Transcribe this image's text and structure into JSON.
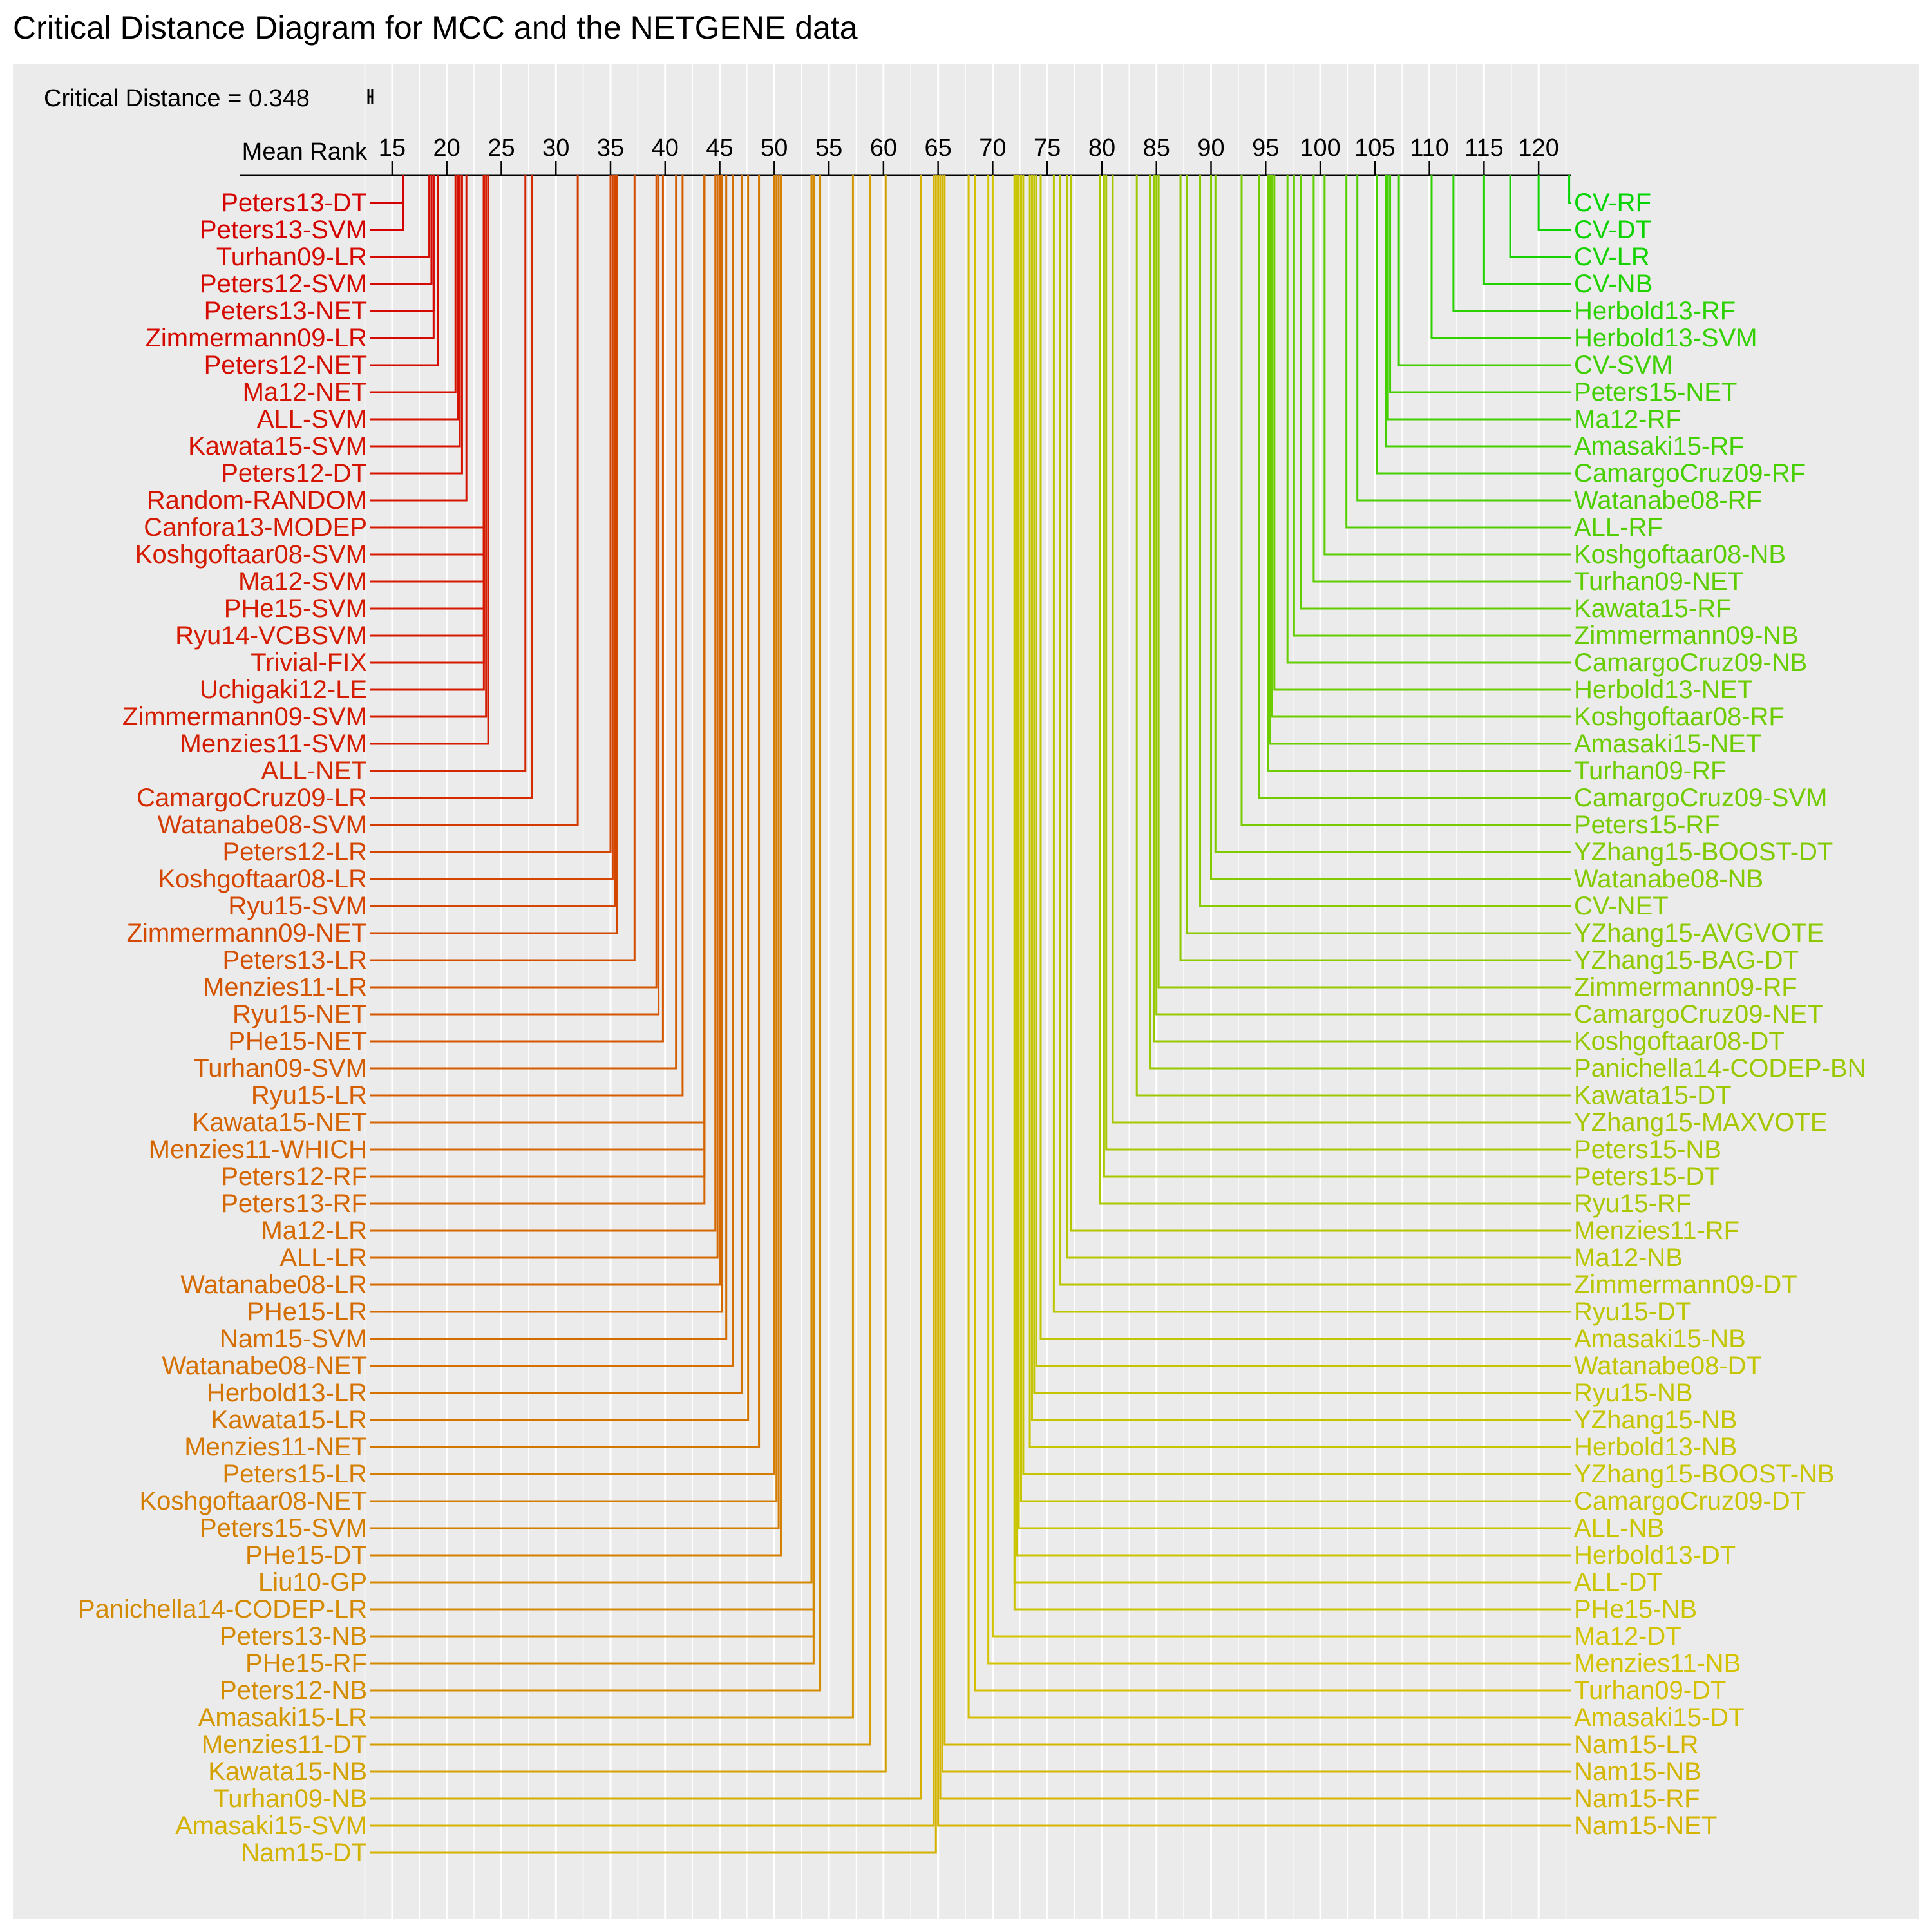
{
  "chart_data": {
    "type": "critical-distance-diagram",
    "title": "Critical Distance Diagram for MCC and the NETGENE data",
    "critical_distance_label": "Critical Distance = 0.348",
    "critical_distance": 0.348,
    "axis_label": "Mean Rank",
    "axis_range": [
      13,
      123
    ],
    "ticks": [
      15,
      20,
      25,
      30,
      35,
      40,
      45,
      50,
      55,
      60,
      65,
      70,
      75,
      80,
      85,
      90,
      95,
      100,
      105,
      110,
      115,
      120
    ],
    "grid": true,
    "colors": {
      "low": "#d40000",
      "mid": "#d4c400",
      "high": "#00d400",
      "background": "#ebebeb",
      "grid": "#ffffff"
    },
    "left_items": [
      {
        "name": "Peters13-DT",
        "rank": 16.0
      },
      {
        "name": "Peters13-SVM",
        "rank": 16.0
      },
      {
        "name": "Turhan09-LR",
        "rank": 18.4
      },
      {
        "name": "Peters12-SVM",
        "rank": 18.6
      },
      {
        "name": "Peters13-NET",
        "rank": 18.8
      },
      {
        "name": "Zimmermann09-LR",
        "rank": 18.8
      },
      {
        "name": "Peters12-NET",
        "rank": 19.2
      },
      {
        "name": "Ma12-NET",
        "rank": 20.8
      },
      {
        "name": "ALL-SVM",
        "rank": 21.0
      },
      {
        "name": "Kawata15-SVM",
        "rank": 21.2
      },
      {
        "name": "Peters12-DT",
        "rank": 21.4
      },
      {
        "name": "Random-RANDOM",
        "rank": 21.8
      },
      {
        "name": "Canfora13-MODEP",
        "rank": 23.4
      },
      {
        "name": "Koshgoftaar08-SVM",
        "rank": 23.4
      },
      {
        "name": "Ma12-SVM",
        "rank": 23.4
      },
      {
        "name": "PHe15-SVM",
        "rank": 23.4
      },
      {
        "name": "Ryu14-VCBSVM",
        "rank": 23.4
      },
      {
        "name": "Trivial-FIX",
        "rank": 23.4
      },
      {
        "name": "Uchigaki12-LE",
        "rank": 23.4
      },
      {
        "name": "Zimmermann09-SVM",
        "rank": 23.6
      },
      {
        "name": "Menzies11-SVM",
        "rank": 23.8
      },
      {
        "name": "ALL-NET",
        "rank": 27.2
      },
      {
        "name": "CamargoCruz09-LR",
        "rank": 27.8
      },
      {
        "name": "Watanabe08-SVM",
        "rank": 32.0
      },
      {
        "name": "Peters12-LR",
        "rank": 35.0
      },
      {
        "name": "Koshgoftaar08-LR",
        "rank": 35.2
      },
      {
        "name": "Ryu15-SVM",
        "rank": 35.4
      },
      {
        "name": "Zimmermann09-NET",
        "rank": 35.6
      },
      {
        "name": "Peters13-LR",
        "rank": 37.2
      },
      {
        "name": "Menzies11-LR",
        "rank": 39.2
      },
      {
        "name": "Ryu15-NET",
        "rank": 39.4
      },
      {
        "name": "PHe15-NET",
        "rank": 39.8
      },
      {
        "name": "Turhan09-SVM",
        "rank": 41.0
      },
      {
        "name": "Ryu15-LR",
        "rank": 41.6
      },
      {
        "name": "Kawata15-NET",
        "rank": 43.6
      },
      {
        "name": "Menzies11-WHICH",
        "rank": 43.6
      },
      {
        "name": "Peters12-RF",
        "rank": 43.6
      },
      {
        "name": "Peters13-RF",
        "rank": 43.6
      },
      {
        "name": "Ma12-LR",
        "rank": 44.6
      },
      {
        "name": "ALL-LR",
        "rank": 44.8
      },
      {
        "name": "Watanabe08-LR",
        "rank": 45.0
      },
      {
        "name": "PHe15-LR",
        "rank": 45.2
      },
      {
        "name": "Nam15-SVM",
        "rank": 45.6
      },
      {
        "name": "Watanabe08-NET",
        "rank": 46.2
      },
      {
        "name": "Herbold13-LR",
        "rank": 47.0
      },
      {
        "name": "Kawata15-LR",
        "rank": 47.6
      },
      {
        "name": "Menzies11-NET",
        "rank": 48.6
      },
      {
        "name": "Peters15-LR",
        "rank": 50.0
      },
      {
        "name": "Koshgoftaar08-NET",
        "rank": 50.2
      },
      {
        "name": "Peters15-SVM",
        "rank": 50.4
      },
      {
        "name": "PHe15-DT",
        "rank": 50.6
      },
      {
        "name": "Liu10-GP",
        "rank": 53.4
      },
      {
        "name": "Panichella14-CODEP-LR",
        "rank": 53.6
      },
      {
        "name": "Peters13-NB",
        "rank": 53.6
      },
      {
        "name": "PHe15-RF",
        "rank": 53.6
      },
      {
        "name": "Peters12-NB",
        "rank": 54.2
      },
      {
        "name": "Amasaki15-LR",
        "rank": 57.2
      },
      {
        "name": "Menzies11-DT",
        "rank": 58.8
      },
      {
        "name": "Kawata15-NB",
        "rank": 60.2
      },
      {
        "name": "Turhan09-NB",
        "rank": 63.4
      },
      {
        "name": "Amasaki15-SVM",
        "rank": 64.6
      },
      {
        "name": "Nam15-DT",
        "rank": 64.8
      }
    ],
    "right_items": [
      {
        "name": "CV-RF",
        "rank": 122.8
      },
      {
        "name": "CV-DT",
        "rank": 120.0
      },
      {
        "name": "CV-LR",
        "rank": 117.4
      },
      {
        "name": "CV-NB",
        "rank": 115.0
      },
      {
        "name": "Herbold13-RF",
        "rank": 112.2
      },
      {
        "name": "Herbold13-SVM",
        "rank": 110.2
      },
      {
        "name": "CV-SVM",
        "rank": 107.2
      },
      {
        "name": "Peters15-NET",
        "rank": 106.4
      },
      {
        "name": "Ma12-RF",
        "rank": 106.2
      },
      {
        "name": "Amasaki15-RF",
        "rank": 106.0
      },
      {
        "name": "CamargoCruz09-RF",
        "rank": 105.2
      },
      {
        "name": "Watanabe08-RF",
        "rank": 103.4
      },
      {
        "name": "ALL-RF",
        "rank": 102.4
      },
      {
        "name": "Koshgoftaar08-NB",
        "rank": 100.4
      },
      {
        "name": "Turhan09-NET",
        "rank": 99.4
      },
      {
        "name": "Kawata15-RF",
        "rank": 98.2
      },
      {
        "name": "Zimmermann09-NB",
        "rank": 97.6
      },
      {
        "name": "CamargoCruz09-NB",
        "rank": 97.0
      },
      {
        "name": "Herbold13-NET",
        "rank": 95.8
      },
      {
        "name": "Koshgoftaar08-RF",
        "rank": 95.6
      },
      {
        "name": "Amasaki15-NET",
        "rank": 95.4
      },
      {
        "name": "Turhan09-RF",
        "rank": 95.2
      },
      {
        "name": "CamargoCruz09-SVM",
        "rank": 94.4
      },
      {
        "name": "Peters15-RF",
        "rank": 92.8
      },
      {
        "name": "YZhang15-BOOST-DT",
        "rank": 90.4
      },
      {
        "name": "Watanabe08-NB",
        "rank": 90.0
      },
      {
        "name": "CV-NET",
        "rank": 89.0
      },
      {
        "name": "YZhang15-AVGVOTE",
        "rank": 87.8
      },
      {
        "name": "YZhang15-BAG-DT",
        "rank": 87.2
      },
      {
        "name": "Zimmermann09-RF",
        "rank": 85.2
      },
      {
        "name": "CamargoCruz09-NET",
        "rank": 85.0
      },
      {
        "name": "Koshgoftaar08-DT",
        "rank": 84.8
      },
      {
        "name": "Panichella14-CODEP-BN",
        "rank": 84.4
      },
      {
        "name": "Kawata15-DT",
        "rank": 83.2
      },
      {
        "name": "YZhang15-MAXVOTE",
        "rank": 81.0
      },
      {
        "name": "Peters15-NB",
        "rank": 80.4
      },
      {
        "name": "Peters15-DT",
        "rank": 80.2
      },
      {
        "name": "Ryu15-RF",
        "rank": 79.8
      },
      {
        "name": "Menzies11-RF",
        "rank": 77.2
      },
      {
        "name": "Ma12-NB",
        "rank": 76.8
      },
      {
        "name": "Zimmermann09-DT",
        "rank": 76.2
      },
      {
        "name": "Ryu15-DT",
        "rank": 75.6
      },
      {
        "name": "Amasaki15-NB",
        "rank": 74.4
      },
      {
        "name": "Watanabe08-DT",
        "rank": 74.0
      },
      {
        "name": "Ryu15-NB",
        "rank": 73.8
      },
      {
        "name": "YZhang15-NB",
        "rank": 73.6
      },
      {
        "name": "Herbold13-NB",
        "rank": 73.4
      },
      {
        "name": "YZhang15-BOOST-NB",
        "rank": 72.8
      },
      {
        "name": "CamargoCruz09-DT",
        "rank": 72.6
      },
      {
        "name": "ALL-NB",
        "rank": 72.4
      },
      {
        "name": "Herbold13-DT",
        "rank": 72.2
      },
      {
        "name": "ALL-DT",
        "rank": 72.0
      },
      {
        "name": "PHe15-NB",
        "rank": 72.0
      },
      {
        "name": "Ma12-DT",
        "rank": 70.0
      },
      {
        "name": "Menzies11-NB",
        "rank": 69.6
      },
      {
        "name": "Turhan09-DT",
        "rank": 68.4
      },
      {
        "name": "Amasaki15-DT",
        "rank": 67.8
      },
      {
        "name": "Nam15-LR",
        "rank": 65.6
      },
      {
        "name": "Nam15-NB",
        "rank": 65.4
      },
      {
        "name": "Nam15-RF",
        "rank": 65.2
      },
      {
        "name": "Nam15-NET",
        "rank": 65.0
      }
    ]
  }
}
